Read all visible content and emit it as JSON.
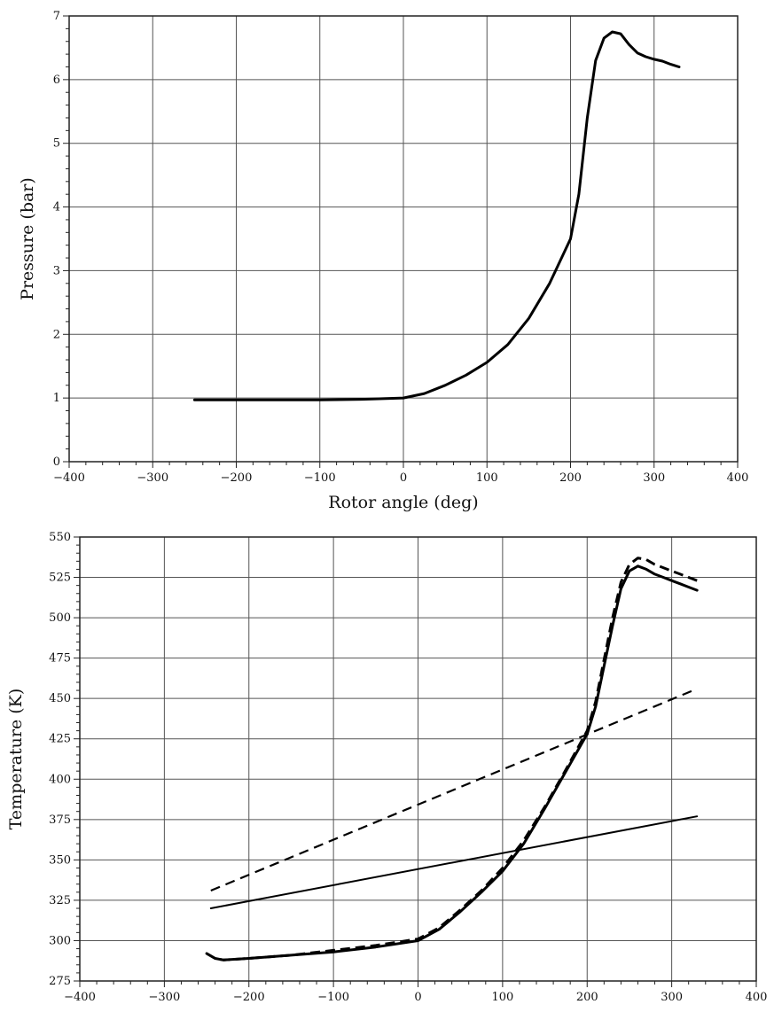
{
  "chart_data": [
    {
      "type": "line",
      "xlabel": "Rotor angle (deg)",
      "ylabel": "Pressure (bar)",
      "xlim": [
        -400,
        400
      ],
      "ylim": [
        0,
        7
      ],
      "xticks": [
        -400,
        -300,
        -200,
        -100,
        0,
        100,
        200,
        300,
        400
      ],
      "yticks": [
        0,
        1,
        2,
        3,
        4,
        5,
        6,
        7
      ],
      "grid": true,
      "series": [
        {
          "style": "solid-thick",
          "color": "#000000",
          "x": [
            -250,
            -200,
            -150,
            -100,
            -50,
            0,
            25,
            50,
            75,
            100,
            125,
            150,
            175,
            200,
            210,
            220,
            230,
            240,
            250,
            260,
            270,
            280,
            290,
            300,
            310,
            320,
            330
          ],
          "y": [
            0.97,
            0.97,
            0.97,
            0.97,
            0.98,
            1.0,
            1.07,
            1.2,
            1.36,
            1.56,
            1.84,
            2.25,
            2.8,
            3.5,
            4.2,
            5.4,
            6.3,
            6.65,
            6.75,
            6.72,
            6.55,
            6.42,
            6.36,
            6.32,
            6.29,
            6.24,
            6.2
          ]
        }
      ]
    },
    {
      "type": "line",
      "xlabel": "",
      "ylabel": "Temperature (K)",
      "xlim": [
        -400,
        400
      ],
      "ylim": [
        275,
        550
      ],
      "xticks": [
        -400,
        -300,
        -200,
        -100,
        0,
        100,
        200,
        300,
        400
      ],
      "yticks": [
        275,
        300,
        325,
        350,
        375,
        400,
        425,
        450,
        475,
        500,
        525,
        550
      ],
      "grid": true,
      "series": [
        {
          "style": "solid-thick",
          "color": "#000000",
          "x": [
            -250,
            -240,
            -230,
            -200,
            -150,
            -100,
            -50,
            0,
            25,
            50,
            75,
            100,
            125,
            150,
            175,
            200,
            210,
            220,
            230,
            240,
            250,
            260,
            270,
            280,
            290,
            300,
            310,
            320,
            330
          ],
          "y": [
            292,
            289,
            288,
            289,
            291,
            293,
            296,
            300,
            307,
            318,
            330,
            343,
            360,
            382,
            405,
            428,
            445,
            470,
            495,
            518,
            529,
            532,
            530,
            527,
            525,
            523,
            521,
            519,
            517
          ]
        },
        {
          "style": "dashed-thick",
          "color": "#000000",
          "x": [
            -250,
            -240,
            -230,
            -200,
            -150,
            -100,
            -50,
            0,
            25,
            50,
            75,
            100,
            125,
            150,
            175,
            200,
            210,
            220,
            230,
            240,
            250,
            260,
            270,
            280,
            290,
            300,
            310,
            320,
            330
          ],
          "y": [
            292,
            289,
            288,
            289,
            291,
            294,
            297,
            301,
            308,
            319,
            331,
            345,
            362,
            383,
            406,
            430,
            448,
            474,
            500,
            522,
            533,
            537,
            536,
            533,
            531,
            529,
            527,
            525,
            523
          ]
        },
        {
          "style": "solid-thin",
          "color": "#000000",
          "x": [
            -245,
            330
          ],
          "y": [
            320,
            377
          ]
        },
        {
          "style": "dashed-thin",
          "color": "#000000",
          "x": [
            -245,
            330
          ],
          "y": [
            331,
            456
          ]
        }
      ]
    }
  ]
}
